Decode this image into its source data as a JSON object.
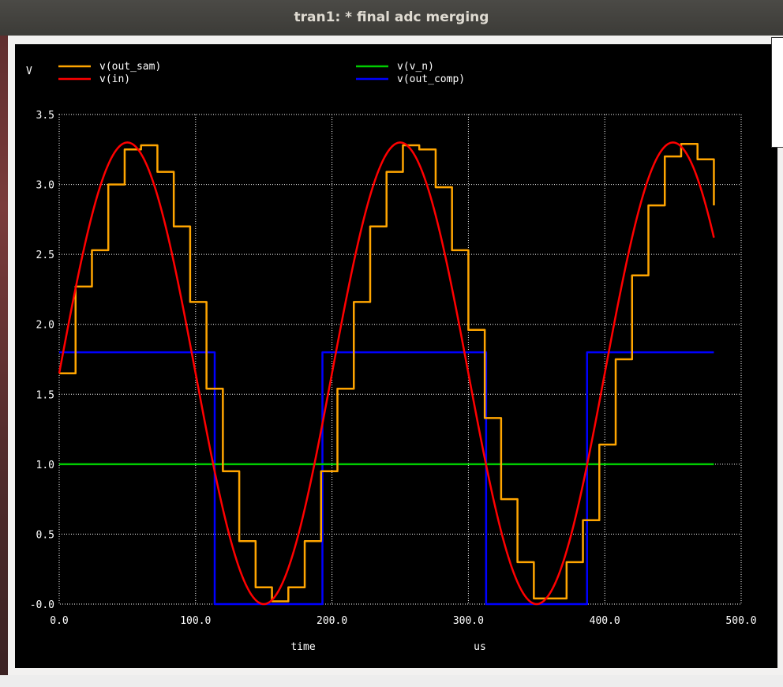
{
  "window": {
    "title": "tran1: * final adc merging"
  },
  "colors": {
    "background": "#000000",
    "grid": "#ffffff",
    "text": "#ffffff",
    "titlebar": "#3c3b37"
  },
  "chart_data": {
    "type": "line",
    "xlabel": "time",
    "xunit": "us",
    "ylabel": "V",
    "xlim": [
      0,
      500
    ],
    "ylim": [
      0,
      3.5
    ],
    "grid": true,
    "legend_position": "top",
    "x_ticks": [
      {
        "value": 0,
        "label": "0.0"
      },
      {
        "value": 100,
        "label": "100.0"
      },
      {
        "value": 200,
        "label": "200.0"
      },
      {
        "value": 300,
        "label": "300.0"
      },
      {
        "value": 400,
        "label": "400.0"
      },
      {
        "value": 500,
        "label": "500.0"
      }
    ],
    "y_ticks": [
      {
        "value": 0,
        "label": "-0.0"
      },
      {
        "value": 0.5,
        "label": "0.5"
      },
      {
        "value": 1.0,
        "label": "1.0"
      },
      {
        "value": 1.5,
        "label": "1.5"
      },
      {
        "value": 2.0,
        "label": "2.0"
      },
      {
        "value": 2.5,
        "label": "2.5"
      },
      {
        "value": 3.0,
        "label": "3.0"
      },
      {
        "value": 3.5,
        "label": "3.5"
      }
    ],
    "series": [
      {
        "name": "v(out_sam)",
        "color": "#ffa500",
        "kind": "step",
        "x": [
          0,
          12,
          24,
          36,
          48,
          60,
          72,
          84,
          96,
          108,
          120,
          132,
          144,
          156,
          168,
          180,
          192,
          204,
          216,
          228,
          240,
          252,
          264,
          276,
          288,
          300,
          312,
          324,
          336,
          348,
          360,
          372,
          384,
          396,
          408,
          420,
          432,
          444,
          456,
          468,
          480
        ],
        "y": [
          1.65,
          2.27,
          2.53,
          3.0,
          3.25,
          3.28,
          3.09,
          2.7,
          2.16,
          1.54,
          0.95,
          0.45,
          0.12,
          0.02,
          0.12,
          0.45,
          0.95,
          1.54,
          2.16,
          2.7,
          3.09,
          3.28,
          3.25,
          2.98,
          2.53,
          1.96,
          1.33,
          0.75,
          0.3,
          0.04,
          0.04,
          0.3,
          0.6,
          1.14,
          1.75,
          2.35,
          2.85,
          3.2,
          3.29,
          3.18,
          2.85
        ]
      },
      {
        "name": "v(in)",
        "color": "#ff0000",
        "kind": "sine",
        "offset": 1.65,
        "amplitude": 1.65,
        "period": 200,
        "x_start": 0,
        "x_end": 480
      },
      {
        "name": "v(v_n)",
        "color": "#00cc00",
        "kind": "segments",
        "x": [
          0,
          480
        ],
        "y": [
          1.0,
          1.0
        ]
      },
      {
        "name": "v(out_comp)",
        "color": "#0000ff",
        "kind": "segments",
        "x": [
          0,
          114,
          114,
          193,
          193,
          313,
          313,
          387,
          387,
          480
        ],
        "y": [
          1.8,
          1.8,
          0,
          0,
          1.8,
          1.8,
          0,
          0,
          1.8,
          1.8
        ]
      }
    ]
  }
}
